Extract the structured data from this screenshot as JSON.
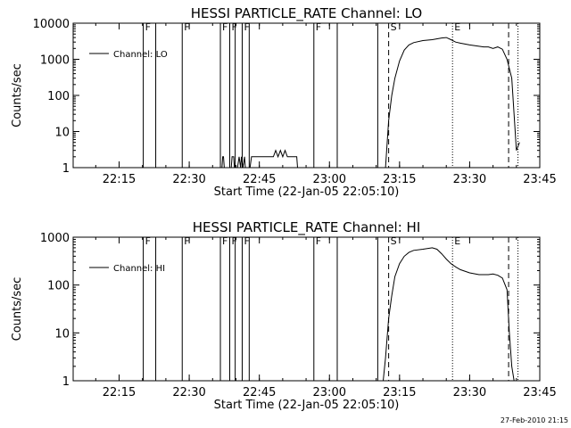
{
  "footer_timestamp": "27-Feb-2010 21:15",
  "chart_data": [
    {
      "type": "line",
      "title": "HESSI PARTICLE_RATE Channel: LO",
      "xlabel": "Start Time (22-Jan-05 22:05:10)",
      "ylabel": "Counts/sec",
      "yscale": "log",
      "xlim": [
        "22:05:10",
        "23:45:00"
      ],
      "ylim": [
        1,
        10000
      ],
      "x_ticks": [
        "22:15",
        "22:30",
        "22:45",
        "23:00",
        "23:15",
        "23:30",
        "23:45"
      ],
      "y_ticks": [
        "1",
        "10",
        "100",
        "1000",
        "10000"
      ],
      "legend": {
        "label": "Channel: LO",
        "position": "top-left"
      },
      "series": [
        {
          "name": "Channel: LO",
          "segments": [
            {
              "x": [
                "22:37:00",
                "22:37:10",
                "22:37:20",
                "22:37:30"
              ],
              "y": [
                1,
                2,
                2,
                1
              ]
            },
            {
              "x": [
                "22:39:00",
                "22:39:10",
                "22:39:30",
                "22:39:40"
              ],
              "y": [
                1,
                2,
                2,
                1
              ]
            },
            {
              "x": [
                "22:40:20",
                "22:40:40",
                "22:41:00",
                "22:41:10",
                "22:41:30",
                "22:41:50",
                "22:42:00"
              ],
              "y": [
                1,
                2,
                1,
                2,
                1,
                2,
                1
              ]
            },
            {
              "x": [
                "22:43:00",
                "22:43:20",
                "22:45:00",
                "22:47:00",
                "22:48:00",
                "22:48:30",
                "22:49:00",
                "22:49:30",
                "22:50:00",
                "22:50:30",
                "22:51:00",
                "22:52:00",
                "22:52:30",
                "22:53:00",
                "22:53:10"
              ],
              "y": [
                1,
                2,
                2,
                2,
                2,
                3,
                2,
                3,
                2,
                3,
                2,
                2,
                2,
                2,
                1
              ]
            },
            {
              "x": [
                "23:12:00",
                "23:12:40",
                "23:13:20",
                "23:14:00",
                "23:15:00",
                "23:16:00",
                "23:17:00",
                "23:18:00",
                "23:20:00",
                "23:22:00",
                "23:24:00",
                "23:25:00",
                "23:26:00",
                "23:27:00",
                "23:28:00",
                "23:30:00",
                "23:32:00",
                "23:33:00",
                "23:34:00",
                "23:35:00",
                "23:36:00",
                "23:37:00",
                "23:38:00",
                "23:39:00",
                "23:40:00",
                "23:40:40"
              ],
              "y": [
                1,
                20,
                100,
                300,
                900,
                1800,
                2500,
                2900,
                3300,
                3500,
                3900,
                4000,
                3500,
                3000,
                2800,
                2500,
                2300,
                2200,
                2200,
                2000,
                2200,
                1900,
                1000,
                300,
                3,
                5
              ]
            }
          ]
        }
      ],
      "flag_lines": [
        {
          "x": "22:20:10",
          "label": "F",
          "style": "solid"
        },
        {
          "x": "22:22:50",
          "label": "",
          "style": "solid"
        },
        {
          "x": "22:28:30",
          "label": "F",
          "style": "solid"
        },
        {
          "x": "22:36:40",
          "label": "F",
          "style": "solid"
        },
        {
          "x": "22:38:40",
          "label": "F",
          "style": "solid"
        },
        {
          "x": "22:39:50",
          "label": "",
          "style": "solid"
        },
        {
          "x": "22:41:20",
          "label": "F",
          "style": "solid"
        },
        {
          "x": "22:42:50",
          "label": "",
          "style": "solid"
        },
        {
          "x": "22:56:40",
          "label": "F",
          "style": "solid"
        },
        {
          "x": "23:01:40",
          "label": "",
          "style": "solid"
        },
        {
          "x": "23:10:20",
          "label": "",
          "style": "solid"
        },
        {
          "x": "23:12:40",
          "label": "S",
          "style": "dashed"
        },
        {
          "x": "23:26:20",
          "label": "E",
          "style": "dotted"
        },
        {
          "x": "23:38:20",
          "label": "",
          "style": "dashed"
        },
        {
          "x": "23:40:20",
          "label": "",
          "style": "dotted"
        }
      ]
    },
    {
      "type": "line",
      "title": "HESSI PARTICLE_RATE Channel: HI",
      "xlabel": "Start Time (22-Jan-05 22:05:10)",
      "ylabel": "Counts/sec",
      "yscale": "log",
      "xlim": [
        "22:05:10",
        "23:45:00"
      ],
      "ylim": [
        1,
        1000
      ],
      "x_ticks": [
        "22:15",
        "22:30",
        "22:45",
        "23:00",
        "23:15",
        "23:30",
        "23:45"
      ],
      "y_ticks": [
        "1",
        "10",
        "100",
        "1000"
      ],
      "legend": {
        "label": "Channel: HI",
        "position": "top-left"
      },
      "series": [
        {
          "name": "Channel: HI",
          "segments": [
            {
              "x": [
                "23:11:30",
                "23:12:00",
                "23:12:40",
                "23:13:20",
                "23:14:00",
                "23:15:00",
                "23:16:00",
                "23:17:00",
                "23:18:00",
                "23:20:00",
                "23:22:00",
                "23:23:00",
                "23:24:00",
                "23:25:00",
                "23:26:00",
                "23:27:00",
                "23:28:00",
                "23:30:00",
                "23:32:00",
                "23:34:00",
                "23:35:00",
                "23:36:00",
                "23:37:00",
                "23:38:00",
                "23:38:30",
                "23:39:00",
                "23:39:30"
              ],
              "y": [
                1,
                3,
                20,
                60,
                150,
                280,
                400,
                480,
                530,
                560,
                600,
                560,
                450,
                350,
                280,
                240,
                210,
                180,
                165,
                165,
                170,
                160,
                140,
                80,
                10,
                2,
                1
              ]
            }
          ]
        }
      ],
      "flag_lines": [
        {
          "x": "22:20:10",
          "label": "F",
          "style": "solid"
        },
        {
          "x": "22:22:50",
          "label": "",
          "style": "solid"
        },
        {
          "x": "22:28:30",
          "label": "F",
          "style": "solid"
        },
        {
          "x": "22:36:40",
          "label": "F",
          "style": "solid"
        },
        {
          "x": "22:38:40",
          "label": "F",
          "style": "solid"
        },
        {
          "x": "22:39:50",
          "label": "",
          "style": "solid"
        },
        {
          "x": "22:41:20",
          "label": "F",
          "style": "solid"
        },
        {
          "x": "22:42:50",
          "label": "",
          "style": "solid"
        },
        {
          "x": "22:56:40",
          "label": "F",
          "style": "solid"
        },
        {
          "x": "23:01:40",
          "label": "",
          "style": "solid"
        },
        {
          "x": "23:10:20",
          "label": "",
          "style": "solid"
        },
        {
          "x": "23:12:40",
          "label": "S",
          "style": "dashed"
        },
        {
          "x": "23:26:20",
          "label": "E",
          "style": "dotted"
        },
        {
          "x": "23:38:20",
          "label": "",
          "style": "dashed"
        },
        {
          "x": "23:40:20",
          "label": "",
          "style": "dotted"
        }
      ]
    }
  ]
}
